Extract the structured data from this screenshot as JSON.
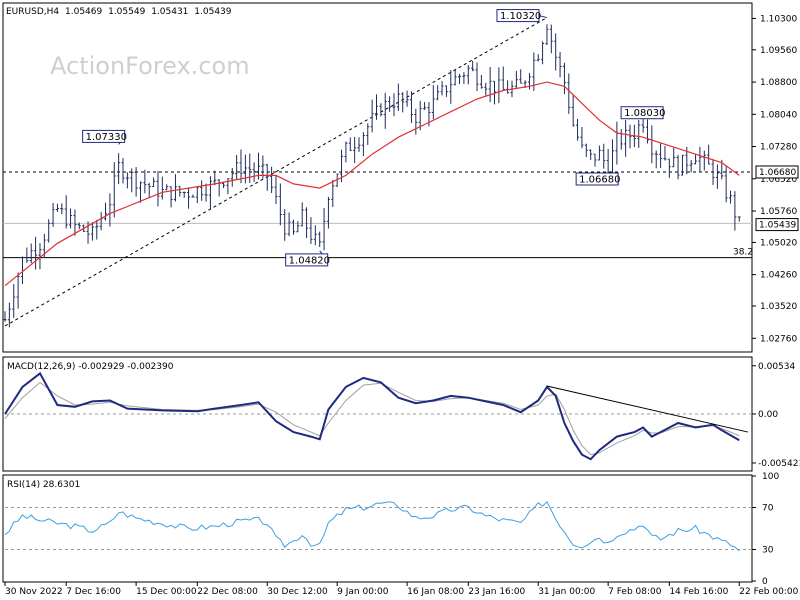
{
  "header": {
    "symbol": "EURUSD,H4",
    "open": "1.05469",
    "high": "1.05549",
    "low": "1.05431",
    "close": "1.05439"
  },
  "watermark": "ActionForex.com",
  "chart_data": [
    {
      "type": "candlestick",
      "name": "price",
      "ylim": [
        1.0246,
        1.1064
      ],
      "y_ticks": [
        "1.10300",
        "1.09560",
        "1.08800",
        "1.08040",
        "1.07280",
        "1.06520",
        "1.05760",
        "1.05020",
        "1.04260",
        "1.03520",
        "1.02760"
      ],
      "current_price": "1.05439",
      "moving_average_color": "#e03030",
      "candle_color": "#1e2a5a",
      "levels": [
        {
          "value": 1.0668,
          "label": "1.06680",
          "style": "dashed"
        },
        {
          "value": 1.0547,
          "label": "",
          "style": "solid-light"
        },
        {
          "value": 1.0466,
          "label": "38.2",
          "style": "solid"
        }
      ],
      "annotations": [
        {
          "label": "1.07330",
          "x": 13,
          "value": 1.0733
        },
        {
          "label": "1.04820",
          "x": 36,
          "value": 1.0482
        },
        {
          "label": "1.10320",
          "x": 62,
          "value": 1.1032
        },
        {
          "label": "1.08030",
          "x": 73,
          "value": 1.0803
        },
        {
          "label": "1.06680",
          "x": 69,
          "value": 1.0668
        }
      ],
      "trendline": {
        "from": {
          "x": 0,
          "value": 1.0305
        },
        "to": {
          "x": 62,
          "value": 1.1032
        }
      },
      "close_path": [
        [
          0,
          1.032
        ],
        [
          2,
          1.046
        ],
        [
          4,
          1.05
        ],
        [
          6,
          1.058
        ],
        [
          8,
          1.054
        ],
        [
          10,
          1.052
        ],
        [
          12,
          1.06
        ],
        [
          13,
          1.068
        ],
        [
          15,
          1.065
        ],
        [
          18,
          1.062
        ],
        [
          21,
          1.062
        ],
        [
          24,
          1.064
        ],
        [
          27,
          1.068
        ],
        [
          29,
          1.067
        ],
        [
          30,
          1.066
        ],
        [
          31,
          1.06
        ],
        [
          32,
          1.054
        ],
        [
          33,
          1.052
        ],
        [
          34,
          1.056
        ],
        [
          35,
          1.052
        ],
        [
          36,
          1.049
        ],
        [
          37,
          1.062
        ],
        [
          39,
          1.072
        ],
        [
          41,
          1.076
        ],
        [
          43,
          1.082
        ],
        [
          45,
          1.084
        ],
        [
          47,
          1.08
        ],
        [
          49,
          1.083
        ],
        [
          51,
          1.088
        ],
        [
          53,
          1.091
        ],
        [
          55,
          1.088
        ],
        [
          57,
          1.086
        ],
        [
          59,
          1.087
        ],
        [
          61,
          1.095
        ],
        [
          62,
          1.102
        ],
        [
          63,
          1.094
        ],
        [
          64,
          1.088
        ],
        [
          65,
          1.078
        ],
        [
          66,
          1.072
        ],
        [
          67,
          1.07
        ],
        [
          68,
          1.071
        ],
        [
          69,
          1.068
        ],
        [
          70,
          1.074
        ],
        [
          72,
          1.076
        ],
        [
          73,
          1.079
        ],
        [
          74,
          1.073
        ],
        [
          75,
          1.071
        ],
        [
          77,
          1.068
        ],
        [
          79,
          1.071
        ],
        [
          81,
          1.067
        ],
        [
          82,
          1.064
        ],
        [
          83,
          1.06
        ],
        [
          84,
          1.0544
        ]
      ],
      "moving_average": [
        [
          0,
          1.04
        ],
        [
          6,
          1.05
        ],
        [
          12,
          1.057
        ],
        [
          18,
          1.062
        ],
        [
          24,
          1.064
        ],
        [
          29,
          1.066
        ],
        [
          31,
          1.066
        ],
        [
          33,
          1.064
        ],
        [
          36,
          1.063
        ],
        [
          39,
          1.066
        ],
        [
          42,
          1.071
        ],
        [
          45,
          1.075
        ],
        [
          48,
          1.078
        ],
        [
          51,
          1.081
        ],
        [
          54,
          1.084
        ],
        [
          57,
          1.086
        ],
        [
          60,
          1.087
        ],
        [
          62,
          1.088
        ],
        [
          64,
          1.087
        ],
        [
          66,
          1.083
        ],
        [
          68,
          1.079
        ],
        [
          70,
          1.076
        ],
        [
          73,
          1.075
        ],
        [
          76,
          1.073
        ],
        [
          79,
          1.071
        ],
        [
          82,
          1.069
        ],
        [
          84,
          1.066
        ]
      ]
    },
    {
      "type": "line",
      "name": "macd",
      "label": "MACD(12,26,9) -0.002929 -0.002390",
      "ylim": [
        -0.0062,
        0.0062
      ],
      "y_ticks": [
        "0.00534",
        "0.00",
        "-0.005421"
      ],
      "series": [
        {
          "color": "#1e2a80",
          "values": [
            [
              0,
              0.0
            ],
            [
              2,
              0.003
            ],
            [
              4,
              0.0045
            ],
            [
              6,
              0.001
            ],
            [
              8,
              0.0008
            ],
            [
              10,
              0.0014
            ],
            [
              12,
              0.0015
            ],
            [
              14,
              0.0006
            ],
            [
              18,
              0.0004
            ],
            [
              22,
              0.0003
            ],
            [
              24,
              0.0006
            ],
            [
              27,
              0.001
            ],
            [
              29,
              0.0013
            ],
            [
              31,
              -0.0008
            ],
            [
              33,
              -0.002
            ],
            [
              35,
              -0.0025
            ],
            [
              36,
              -0.0028
            ],
            [
              37,
              0.0005
            ],
            [
              39,
              0.003
            ],
            [
              41,
              0.004
            ],
            [
              43,
              0.0035
            ],
            [
              45,
              0.0018
            ],
            [
              47,
              0.0012
            ],
            [
              49,
              0.0015
            ],
            [
              51,
              0.002
            ],
            [
              53,
              0.0018
            ],
            [
              55,
              0.0014
            ],
            [
              57,
              0.001
            ],
            [
              59,
              0.0002
            ],
            [
              61,
              0.0015
            ],
            [
              62,
              0.003
            ],
            [
              63,
              0.002
            ],
            [
              64,
              -0.001
            ],
            [
              65,
              -0.003
            ],
            [
              66,
              -0.0045
            ],
            [
              67,
              -0.005
            ],
            [
              68,
              -0.004
            ],
            [
              70,
              -0.0025
            ],
            [
              72,
              -0.002
            ],
            [
              73,
              -0.0015
            ],
            [
              74,
              -0.0025
            ],
            [
              75,
              -0.002
            ],
            [
              77,
              -0.001
            ],
            [
              79,
              -0.0015
            ],
            [
              81,
              -0.0012
            ],
            [
              82,
              -0.0018
            ],
            [
              84,
              -0.0029
            ]
          ]
        },
        {
          "color": "#a0a0a0",
          "values": [
            [
              0,
              -0.0005
            ],
            [
              2,
              0.0018
            ],
            [
              4,
              0.0035
            ],
            [
              6,
              0.002
            ],
            [
              8,
              0.001
            ],
            [
              10,
              0.0011
            ],
            [
              12,
              0.0013
            ],
            [
              14,
              0.0009
            ],
            [
              18,
              0.0005
            ],
            [
              22,
              0.0004
            ],
            [
              24,
              0.0005
            ],
            [
              27,
              0.0008
            ],
            [
              29,
              0.0011
            ],
            [
              31,
              0.0002
            ],
            [
              33,
              -0.0012
            ],
            [
              35,
              -0.002
            ],
            [
              36,
              -0.0024
            ],
            [
              37,
              -0.001
            ],
            [
              39,
              0.0015
            ],
            [
              41,
              0.0032
            ],
            [
              43,
              0.0034
            ],
            [
              45,
              0.0024
            ],
            [
              47,
              0.0015
            ],
            [
              49,
              0.0014
            ],
            [
              51,
              0.0017
            ],
            [
              53,
              0.0018
            ],
            [
              55,
              0.0015
            ],
            [
              57,
              0.0012
            ],
            [
              59,
              0.0005
            ],
            [
              61,
              0.001
            ],
            [
              62,
              0.002
            ],
            [
              63,
              0.0022
            ],
            [
              64,
              0.0005
            ],
            [
              65,
              -0.0018
            ],
            [
              66,
              -0.0035
            ],
            [
              67,
              -0.0045
            ],
            [
              68,
              -0.0043
            ],
            [
              70,
              -0.0032
            ],
            [
              72,
              -0.0024
            ],
            [
              73,
              -0.0018
            ],
            [
              74,
              -0.0021
            ],
            [
              75,
              -0.0021
            ],
            [
              77,
              -0.0014
            ],
            [
              79,
              -0.0014
            ],
            [
              81,
              -0.0013
            ],
            [
              82,
              -0.0016
            ],
            [
              84,
              -0.0024
            ]
          ]
        }
      ],
      "trendline": {
        "from": {
          "x": 62,
          "value": 0.0031
        },
        "to": {
          "x": 85,
          "value": -0.002
        }
      }
    },
    {
      "type": "line",
      "name": "rsi",
      "label": "RSI(14) 28.6301",
      "ylim": [
        0,
        100
      ],
      "y_ticks": [
        "100",
        "70",
        "30",
        "0"
      ],
      "levels": [
        70,
        30
      ],
      "series": [
        {
          "color": "#3aa0e0",
          "values": [
            [
              0,
              45
            ],
            [
              2,
              62
            ],
            [
              4,
              58
            ],
            [
              6,
              55
            ],
            [
              8,
              52
            ],
            [
              10,
              48
            ],
            [
              12,
              55
            ],
            [
              13,
              66
            ],
            [
              15,
              60
            ],
            [
              18,
              55
            ],
            [
              21,
              50
            ],
            [
              24,
              52
            ],
            [
              27,
              57
            ],
            [
              29,
              58
            ],
            [
              30,
              55
            ],
            [
              31,
              40
            ],
            [
              32,
              34
            ],
            [
              33,
              38
            ],
            [
              34,
              45
            ],
            [
              35,
              36
            ],
            [
              36,
              33
            ],
            [
              37,
              55
            ],
            [
              39,
              68
            ],
            [
              41,
              70
            ],
            [
              43,
              74
            ],
            [
              45,
              72
            ],
            [
              47,
              60
            ],
            [
              49,
              62
            ],
            [
              51,
              68
            ],
            [
              53,
              70
            ],
            [
              55,
              62
            ],
            [
              57,
              58
            ],
            [
              59,
              55
            ],
            [
              61,
              72
            ],
            [
              62,
              76
            ],
            [
              63,
              60
            ],
            [
              64,
              48
            ],
            [
              65,
              36
            ],
            [
              66,
              34
            ],
            [
              67,
              38
            ],
            [
              68,
              42
            ],
            [
              69,
              36
            ],
            [
              70,
              45
            ],
            [
              72,
              50
            ],
            [
              73,
              55
            ],
            [
              74,
              42
            ],
            [
              75,
              40
            ],
            [
              77,
              48
            ],
            [
              79,
              50
            ],
            [
              81,
              42
            ],
            [
              82,
              38
            ],
            [
              83,
              35
            ],
            [
              84,
              28.6
            ]
          ]
        }
      ]
    }
  ],
  "x_axis": {
    "labels": [
      "30 Nov 2022",
      "7 Dec 16:00",
      "15 Dec 00:00",
      "22 Dec 08:00",
      "30 Dec 12:00",
      "9 Jan 00:00",
      "16 Jan 08:00",
      "23 Jan 16:00",
      "31 Jan 00:00",
      "7 Feb 08:00",
      "14 Feb 16:00",
      "22 Feb 00:00"
    ],
    "label_index": [
      0,
      7,
      15,
      22,
      30,
      38,
      46,
      53,
      61,
      69,
      76,
      84
    ]
  }
}
